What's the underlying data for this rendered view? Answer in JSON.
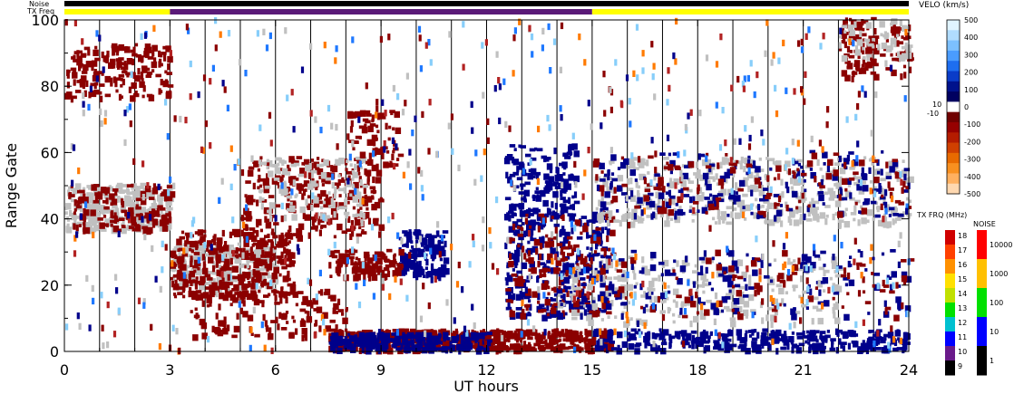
{
  "chart_data": {
    "type": "heatmap",
    "title": "",
    "xlabel": "UT hours",
    "ylabel": "Range Gate",
    "xlim": [
      0,
      24
    ],
    "ylim": [
      0,
      100
    ],
    "x_ticks": [
      "0",
      "3",
      "6",
      "9",
      "12",
      "15",
      "18",
      "21",
      "24"
    ],
    "y_ticks": [
      "0",
      "20",
      "40",
      "60",
      "80",
      "100"
    ],
    "top_bars": {
      "noise_label": "Noise",
      "freq_label": "TX Freq",
      "freq_segments": [
        {
          "start": 0,
          "end": 3,
          "color": "#ffff00"
        },
        {
          "start": 3,
          "end": 15,
          "color": "#5a1a78"
        },
        {
          "start": 15,
          "end": 24,
          "color": "#ffff00"
        }
      ]
    },
    "velocity_scale": {
      "title": "VELO (km/s)",
      "labels": [
        "500",
        "400",
        "300",
        "200",
        "100",
        "0",
        "-100",
        "-200",
        "-300",
        "-400",
        "-500"
      ],
      "side_labels": [
        "10",
        "-10"
      ]
    },
    "tx_freq_scale": {
      "title": "TX FRQ (MHz)",
      "labels": [
        "18",
        "17",
        "16",
        "15",
        "14",
        "13",
        "12",
        "11",
        "10",
        "9"
      ],
      "colors": [
        "#d00000",
        "#ff4000",
        "#ff9000",
        "#ffe000",
        "#c0e000",
        "#00e000",
        "#00c0d0",
        "#0000ff",
        "#6a1a8a",
        "#000000"
      ]
    },
    "noise_scale": {
      "title": "NOISE",
      "labels": [
        "10000",
        "1000",
        "100",
        "10",
        "1"
      ],
      "colors": [
        "#ff0000",
        "#ffc000",
        "#00e000",
        "#0000ff",
        "#000000"
      ]
    },
    "regions": [
      {
        "name": "ground scatter",
        "color": "#c0c0c0",
        "x0": 0,
        "x1": 3,
        "y0": 36,
        "y1": 50,
        "count": 260
      },
      {
        "name": "neg velocity",
        "color": "#8b0000",
        "x0": 0,
        "x1": 3,
        "y0": 36,
        "y1": 50,
        "count": 140
      },
      {
        "name": "neg velocity",
        "color": "#8b0000",
        "x0": 0,
        "x1": 3,
        "y0": 76,
        "y1": 92,
        "count": 170
      },
      {
        "name": "ground scatter",
        "color": "#c0c0c0",
        "x0": 3,
        "x1": 6,
        "y0": 18,
        "y1": 32,
        "count": 230
      },
      {
        "name": "neg velocity",
        "color": "#8b0000",
        "x0": 3,
        "x1": 6.5,
        "y0": 16,
        "y1": 36,
        "count": 330
      },
      {
        "name": "neg velocity",
        "color": "#8b0000",
        "x0": 5,
        "x1": 9,
        "y0": 34,
        "y1": 58,
        "count": 280
      },
      {
        "name": "ground scatter",
        "color": "#c0c0c0",
        "x0": 5.5,
        "x1": 8.5,
        "y0": 40,
        "y1": 58,
        "count": 120
      },
      {
        "name": "neg velocity",
        "color": "#8b0000",
        "x0": 8,
        "x1": 9.5,
        "y0": 55,
        "y1": 72,
        "count": 70
      },
      {
        "name": "pos velocity",
        "color": "#00008b",
        "x0": 9.5,
        "x1": 10.8,
        "y0": 22,
        "y1": 36,
        "count": 140
      },
      {
        "name": "neg velocity",
        "color": "#8b0000",
        "x0": 7.5,
        "x1": 9.5,
        "y0": 22,
        "y1": 30,
        "count": 120
      },
      {
        "name": "neg velocity",
        "color": "#8b0000",
        "x0": 3.5,
        "x1": 8,
        "y0": 4,
        "y1": 18,
        "count": 130
      },
      {
        "name": "neg velocity",
        "color": "#8b0000",
        "x0": 7.5,
        "x1": 15.5,
        "y0": 0,
        "y1": 6,
        "count": 600
      },
      {
        "name": "pos velocity",
        "color": "#00008b",
        "x0": 7.5,
        "x1": 12,
        "y0": 0,
        "y1": 5,
        "count": 260
      },
      {
        "name": "pos velocity",
        "color": "#00008b",
        "x0": 15,
        "x1": 24,
        "y0": 0,
        "y1": 6,
        "count": 330
      },
      {
        "name": "pos velocity",
        "color": "#00008b",
        "x0": 12.5,
        "x1": 14.5,
        "y0": 40,
        "y1": 62,
        "count": 160
      },
      {
        "name": "pos velocity",
        "color": "#00008b",
        "x0": 12.5,
        "x1": 15.5,
        "y0": 10,
        "y1": 42,
        "count": 260
      },
      {
        "name": "neg velocity",
        "color": "#8b0000",
        "x0": 12.5,
        "x1": 15.5,
        "y0": 10,
        "y1": 42,
        "count": 160
      },
      {
        "name": "ground scatter",
        "color": "#c0c0c0",
        "x0": 15,
        "x1": 24,
        "y0": 38,
        "y1": 58,
        "count": 430
      },
      {
        "name": "pos velocity",
        "color": "#00008b",
        "x0": 15,
        "x1": 24,
        "y0": 40,
        "y1": 60,
        "count": 200
      },
      {
        "name": "neg velocity",
        "color": "#8b0000",
        "x0": 15,
        "x1": 24,
        "y0": 40,
        "y1": 60,
        "count": 120
      },
      {
        "name": "ground scatter",
        "color": "#c0c0c0",
        "x0": 14,
        "x1": 22,
        "y0": 8,
        "y1": 28,
        "count": 230
      },
      {
        "name": "pos velocity",
        "color": "#00008b",
        "x0": 14,
        "x1": 24,
        "y0": 10,
        "y1": 30,
        "count": 180
      },
      {
        "name": "neg velocity",
        "color": "#8b0000",
        "x0": 14,
        "x1": 24,
        "y0": 10,
        "y1": 30,
        "count": 90
      },
      {
        "name": "neg velocity",
        "color": "#8b0000",
        "x0": 22,
        "x1": 24,
        "y0": 82,
        "y1": 100,
        "count": 120
      },
      {
        "name": "ground scatter",
        "color": "#c0c0c0",
        "x0": 22,
        "x1": 24,
        "y0": 88,
        "y1": 100,
        "count": 60
      }
    ],
    "scatter_colors": [
      "#8b0000",
      "#00008b",
      "#1e78ff",
      "#87cefa",
      "#ff7a00",
      "#b22222",
      "#c0c0c0"
    ]
  }
}
